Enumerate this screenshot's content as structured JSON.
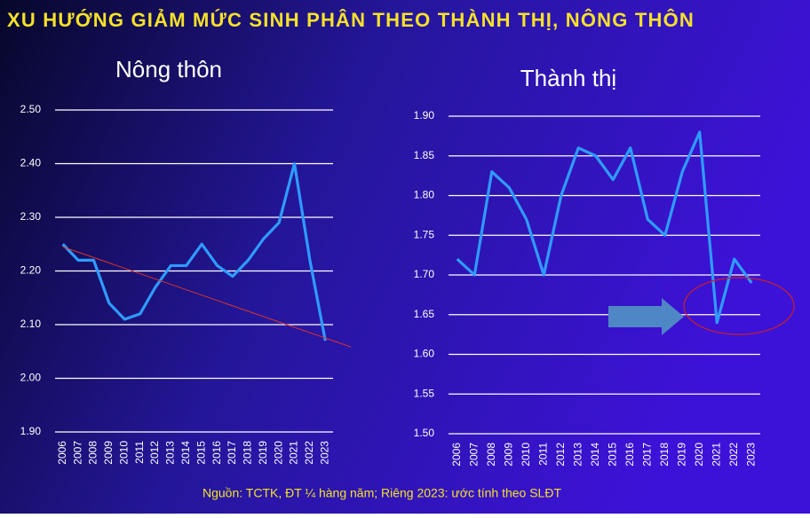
{
  "title": "XU HƯỚNG GIẢM MỨC SINH PHÂN THEO THÀNH THỊ, NÔNG THÔN",
  "source": "Nguồn: TCTK, ĐT ¼ hàng năm; Riêng 2023: ước tính theo SLĐT",
  "chart_data": [
    {
      "type": "line",
      "title": "Nông thôn",
      "categories": [
        "2006",
        "2007",
        "2008",
        "2009",
        "2010",
        "2011",
        "2012",
        "2013",
        "2014",
        "2015",
        "2016",
        "2017",
        "2018",
        "2019",
        "2020",
        "2021",
        "2022",
        "2023"
      ],
      "values": [
        2.25,
        2.22,
        2.22,
        2.14,
        2.11,
        2.12,
        2.17,
        2.21,
        2.21,
        2.25,
        2.21,
        2.19,
        2.22,
        2.26,
        2.29,
        2.4,
        2.22,
        2.07
      ],
      "color": "#2f9bff",
      "trendline": {
        "color": "#d8342c",
        "values": [
          2.245,
          2.075
        ]
      },
      "ylim": [
        1.9,
        2.5
      ],
      "yticks": [
        {
          "value": 1.9,
          "label": "1.90"
        },
        {
          "value": 2.0,
          "label": "2.00"
        },
        {
          "value": 2.1,
          "label": "2.10"
        },
        {
          "value": 2.2,
          "label": "2.20"
        },
        {
          "value": 2.3,
          "label": "2.30"
        },
        {
          "value": 2.4,
          "label": "2.40"
        },
        {
          "value": 2.5,
          "label": "2.50"
        }
      ],
      "grid": true
    },
    {
      "type": "line",
      "title": "Thành thị",
      "categories": [
        "2006",
        "2007",
        "2008",
        "2009",
        "2010",
        "2011",
        "2012",
        "2013",
        "2014",
        "2015",
        "2016",
        "2017",
        "2018",
        "2019",
        "2020",
        "2021",
        "2022",
        "2023"
      ],
      "values": [
        1.72,
        1.7,
        1.83,
        1.81,
        1.77,
        1.7,
        1.8,
        1.86,
        1.85,
        1.82,
        1.86,
        1.77,
        1.75,
        1.83,
        1.88,
        1.64,
        1.72,
        1.69
      ],
      "color": "#2f9bff",
      "ylim": [
        1.5,
        1.9
      ],
      "yticks": [
        {
          "value": 1.5,
          "label": "1.50"
        },
        {
          "value": 1.55,
          "label": "1.55"
        },
        {
          "value": 1.6,
          "label": "1.60"
        },
        {
          "value": 1.65,
          "label": "1.65"
        },
        {
          "value": 1.7,
          "label": "1.70"
        },
        {
          "value": 1.75,
          "label": "1.75"
        },
        {
          "value": 1.8,
          "label": "1.80"
        },
        {
          "value": 1.85,
          "label": "1.85"
        },
        {
          "value": 1.9,
          "label": "1.90"
        }
      ],
      "grid": true
    }
  ]
}
